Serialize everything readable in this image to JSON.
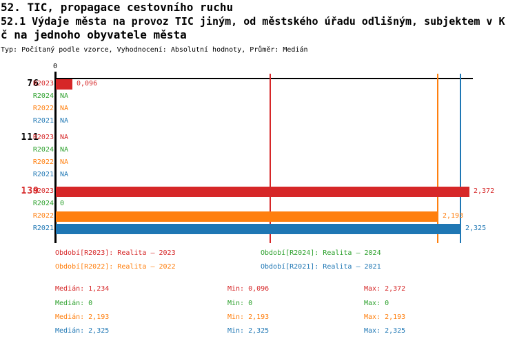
{
  "title": {
    "line1": "52. TIC, propagace cestovního ruchu",
    "line2": "52.1 Výdaje města na provoz TIC jiným, od městského úřadu odlišným, subjektem v K",
    "line3": "č na jednoho obyvatele města",
    "meta": "Typ: Počítaný podle vzorce, Vyhodnocení: Absolutní hodnoty, Průměr: Medián"
  },
  "colors": {
    "R2023": "#d62728",
    "R2024": "#2ca02c",
    "R2022": "#ff7f0e",
    "R2021": "#1f77b4",
    "axis": "#000000"
  },
  "chart_data": {
    "type": "bar",
    "orientation": "horizontal",
    "axis": {
      "tick_label": "0",
      "min": 0,
      "max": 2.392,
      "grid": false
    },
    "groups": [
      {
        "label": "76",
        "rows": [
          {
            "period": "R2023",
            "value": 0.096,
            "display": "0,096"
          },
          {
            "period": "R2024",
            "value": null,
            "display": "NA"
          },
          {
            "period": "R2022",
            "value": null,
            "display": "NA"
          },
          {
            "period": "R2021",
            "value": null,
            "display": "NA"
          }
        ]
      },
      {
        "label": "111",
        "rows": [
          {
            "period": "R2023",
            "value": null,
            "display": "NA"
          },
          {
            "period": "R2024",
            "value": null,
            "display": "NA"
          },
          {
            "period": "R2022",
            "value": null,
            "display": "NA"
          },
          {
            "period": "R2021",
            "value": null,
            "display": "NA"
          }
        ]
      },
      {
        "label": "139",
        "rows": [
          {
            "period": "R2023",
            "value": 2.372,
            "display": "2,372"
          },
          {
            "period": "R2024",
            "value": 0,
            "display": "0"
          },
          {
            "period": "R2022",
            "value": 2.193,
            "display": "2,193"
          },
          {
            "period": "R2021",
            "value": 2.325,
            "display": "2,325"
          }
        ]
      }
    ],
    "median_lines": [
      {
        "series": "R2023",
        "value": 1.234
      },
      {
        "series": "R2022",
        "value": 2.193
      },
      {
        "series": "R2021",
        "value": 2.325
      }
    ],
    "legend": [
      {
        "series": "R2023",
        "label": "Období[R2023]: Realita – 2023"
      },
      {
        "series": "R2024",
        "label": "Období[R2024]: Realita – 2024"
      },
      {
        "series": "R2022",
        "label": "Období[R2022]: Realita – 2022"
      },
      {
        "series": "R2021",
        "label": "Období[R2021]: Realita – 2021"
      }
    ],
    "stats": [
      {
        "series": "R2023",
        "median": "Medián: 1,234",
        "min": "Min: 0,096",
        "max": "Max: 2,372"
      },
      {
        "series": "R2024",
        "median": "Medián: 0",
        "min": "Min: 0",
        "max": "Max: 0"
      },
      {
        "series": "R2022",
        "median": "Medián: 2,193",
        "min": "Min: 2,193",
        "max": "Max: 2,193"
      },
      {
        "series": "R2021",
        "median": "Medián: 2,325",
        "min": "Min: 2,325",
        "max": "Max: 2,325"
      }
    ]
  }
}
